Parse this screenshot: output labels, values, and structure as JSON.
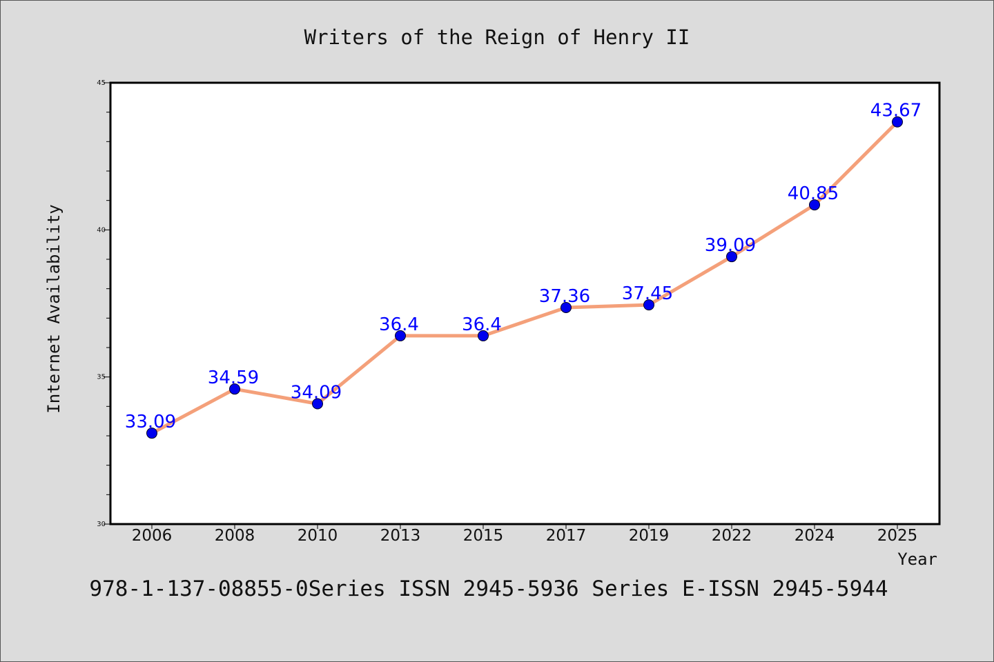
{
  "chart_data": {
    "type": "line",
    "title": "Writers of the Reign of Henry II",
    "xlabel": "Year",
    "ylabel": "Internet Availability",
    "categories": [
      "2006",
      "2008",
      "2010",
      "2013",
      "2015",
      "2017",
      "2019",
      "2022",
      "2024",
      "2025"
    ],
    "values": [
      33.09,
      34.59,
      34.09,
      36.4,
      36.4,
      37.36,
      37.45,
      39.09,
      40.85,
      43.67
    ],
    "value_labels": [
      "33.09",
      "34.59",
      "34.09",
      "36.4",
      "36.4",
      "37.36",
      "37.45",
      "39.09",
      "40.85",
      "43.67"
    ],
    "ylim": [
      30,
      45
    ],
    "y_ticks": [
      "30",
      "35",
      "40",
      "45"
    ],
    "grid": false,
    "footer": "978-1-137-08855-0Series ISSN 2945-5936 Series E-ISSN 2945-5944",
    "colors": {
      "background": "#dcdcdc",
      "plot_background": "#ffffff",
      "line": "#f4a07a",
      "marker": "#0000ee",
      "data_label": "#0000ff",
      "text": "#111111"
    }
  }
}
